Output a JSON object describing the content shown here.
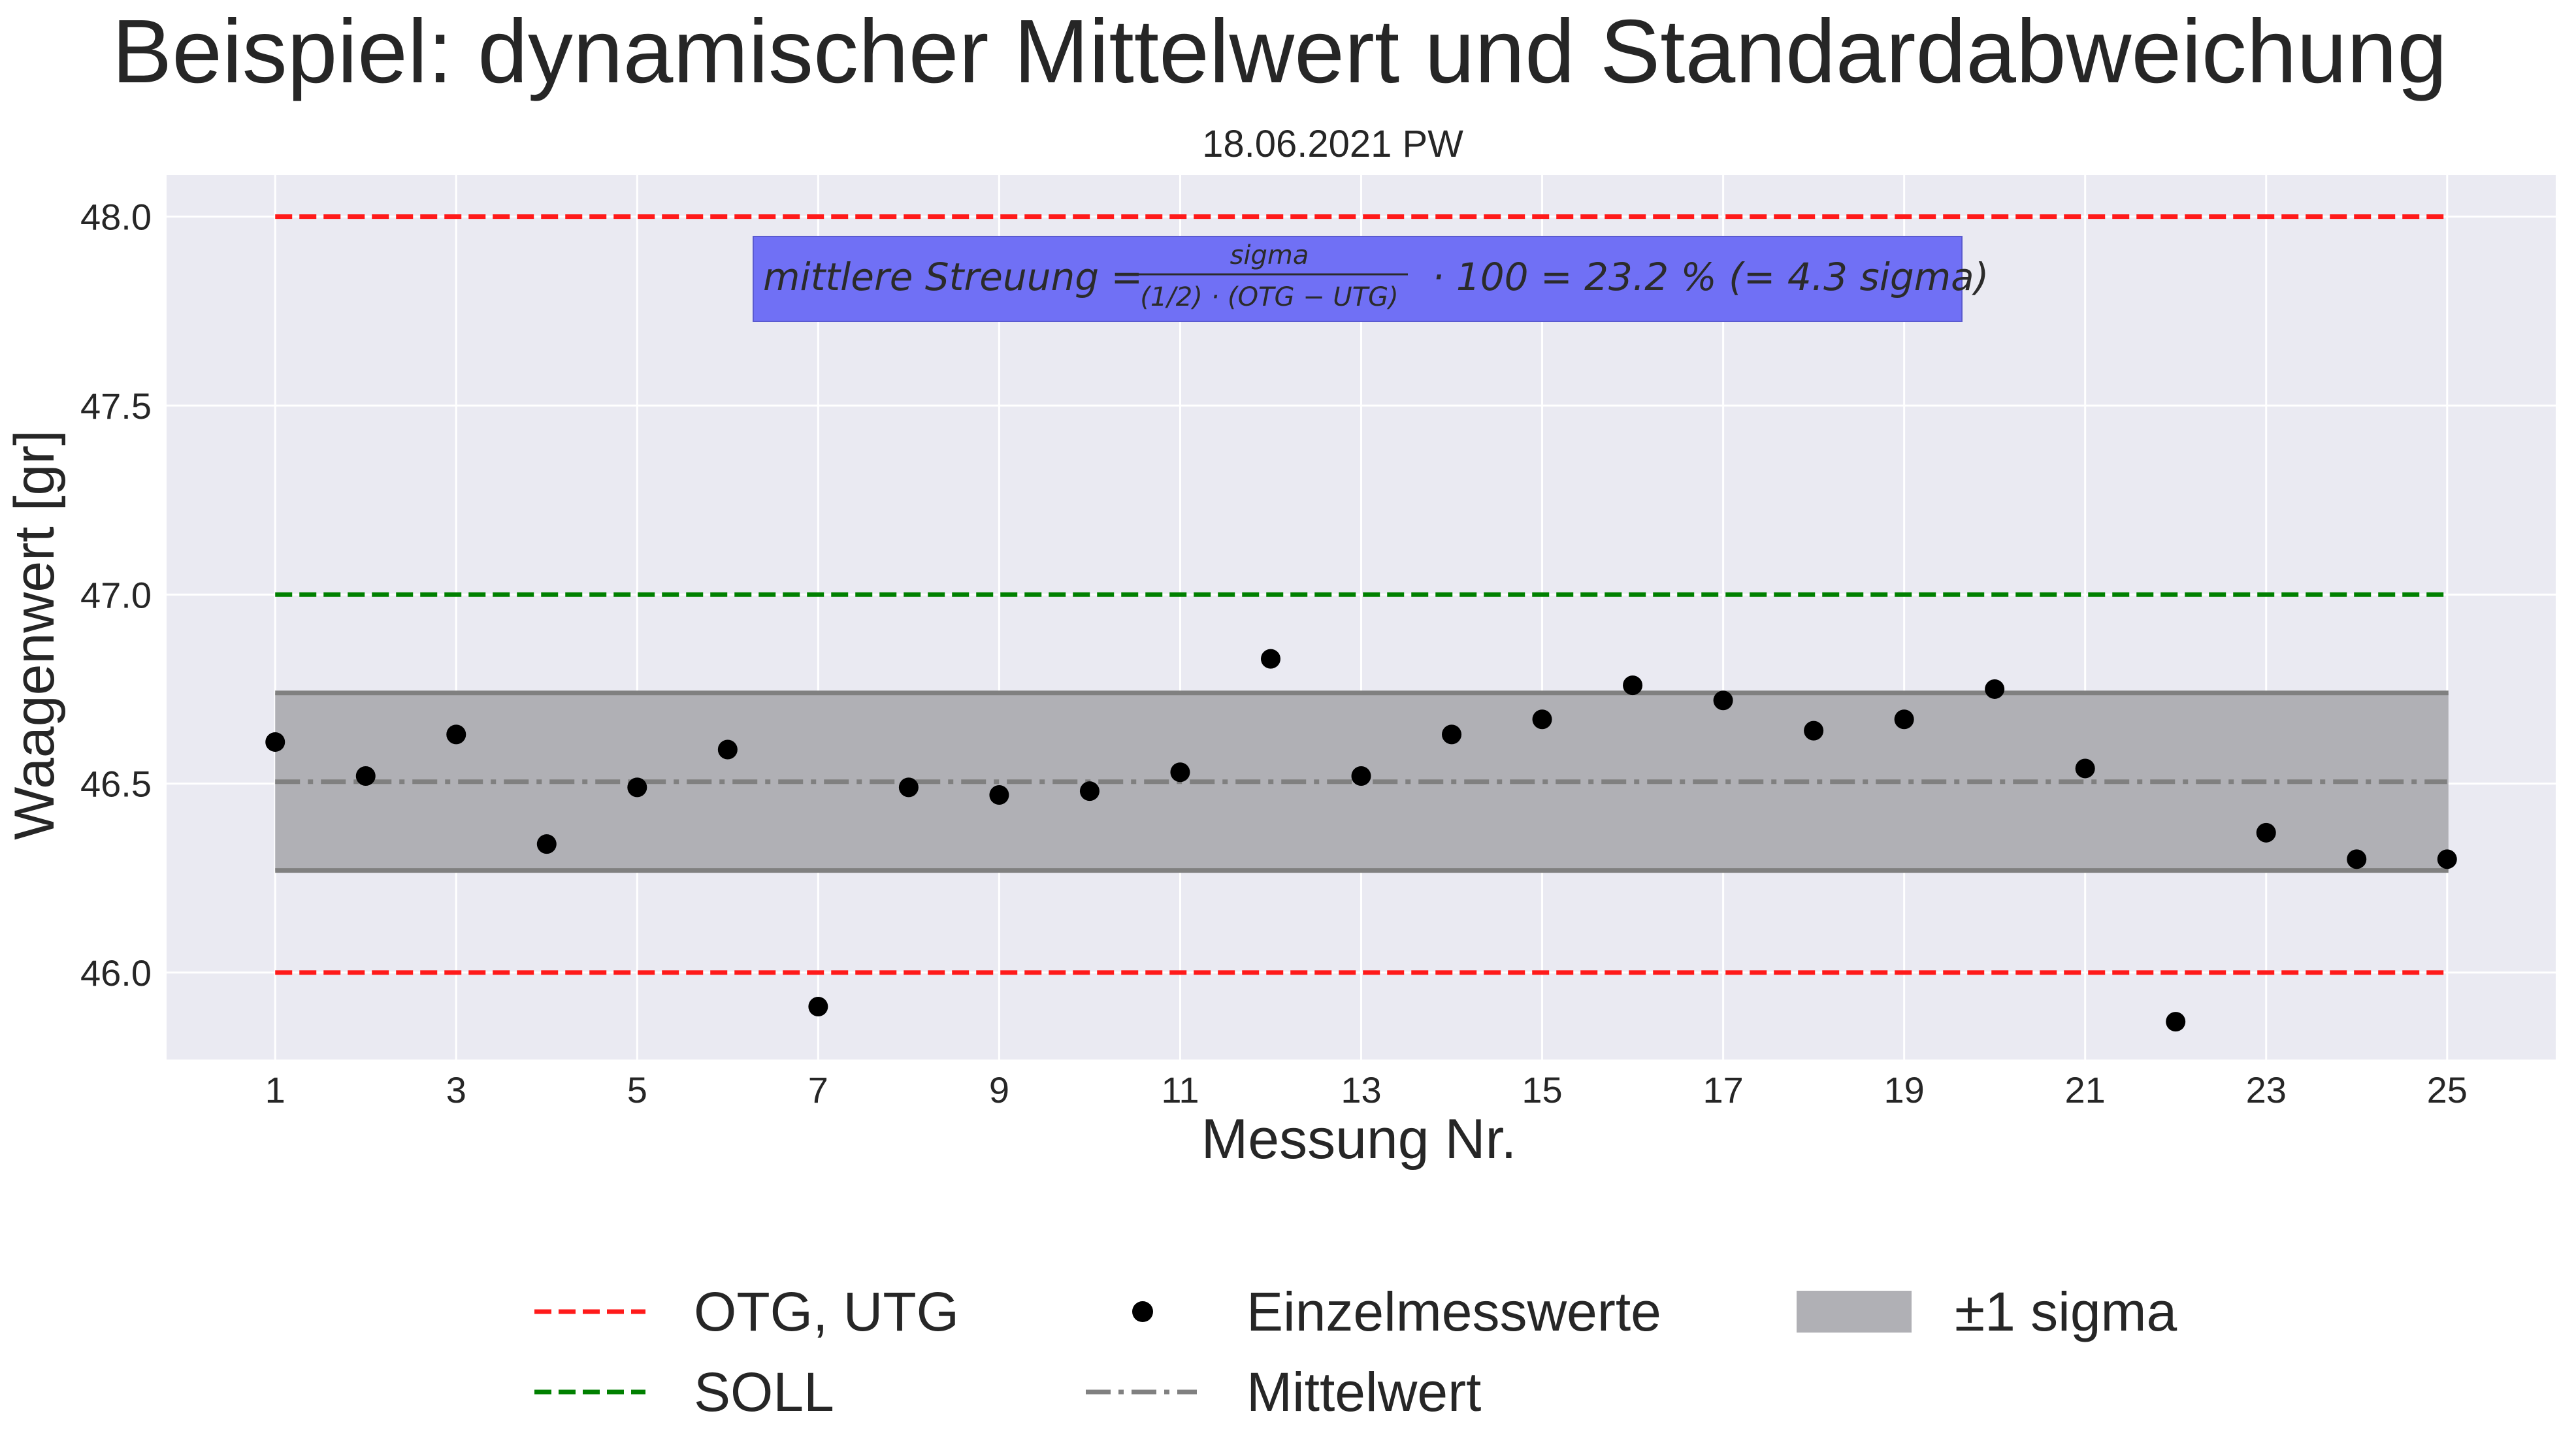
{
  "chart_data": {
    "type": "scatter",
    "title": "Beispiel: dynamischer Mittelwert und Standardabweichung",
    "subtitle": "18.06.2021 PW",
    "xlabel": "Messung Nr.",
    "ylabel": "Waagenwert [gr]",
    "xlim": [
      -0.2,
      26.2
    ],
    "ylim": [
      45.77,
      48.11
    ],
    "x_ticks": [
      "1",
      "3",
      "5",
      "7",
      "9",
      "11",
      "13",
      "15",
      "17",
      "19",
      "21",
      "23",
      "25"
    ],
    "y_ticks": [
      "46.0",
      "46.5",
      "47.0",
      "47.5",
      "48.0"
    ],
    "grid": true,
    "series": [
      {
        "name": "Einzelmesswerte",
        "x": [
          1,
          2,
          3,
          4,
          5,
          6,
          7,
          8,
          9,
          10,
          11,
          12,
          13,
          14,
          15,
          16,
          17,
          18,
          19,
          20,
          21,
          22,
          23,
          24,
          25
        ],
        "y": [
          46.61,
          46.52,
          46.63,
          46.34,
          46.49,
          46.59,
          45.91,
          46.49,
          46.47,
          46.48,
          46.53,
          46.83,
          46.52,
          46.63,
          46.67,
          46.76,
          46.72,
          46.64,
          46.67,
          46.75,
          46.54,
          45.87,
          46.37,
          46.3,
          46.3
        ],
        "color": "#000000"
      }
    ],
    "reference_lines": [
      {
        "name": "OTG, UTG",
        "values": [
          48.0,
          46.0
        ],
        "x_range": [
          1,
          25
        ],
        "color": "#ff1a1a",
        "style": "dashed"
      },
      {
        "name": "SOLL",
        "value": 47.0,
        "x_range": [
          1,
          25
        ],
        "color": "#008000",
        "style": "dashed"
      },
      {
        "name": "Mittelwert",
        "value": 46.505,
        "x_range": [
          1,
          25
        ],
        "color": "#808080",
        "style": "dashdot"
      }
    ],
    "band": {
      "name": "±1 sigma",
      "lower": 46.27,
      "upper": 46.74,
      "color": "#b0b0b5",
      "edge_color": "#808080"
    },
    "annotation": {
      "prefix": "mittlere Streuung = ",
      "numerator": "sigma",
      "denominator": "(1/2) · (OTG  − UTG)",
      "suffix": "· 100 = 23.2 % (= 4.3 sigma)",
      "background": "#7070f5"
    },
    "legend": {
      "placement": "bottom",
      "entries": [
        "OTG, UTG",
        "SOLL",
        "Einzelmesswerte",
        "Mittelwert",
        "±1 sigma"
      ]
    },
    "colors": {
      "plot_background": "#eaeaf2",
      "grid": "#ffffff"
    }
  }
}
